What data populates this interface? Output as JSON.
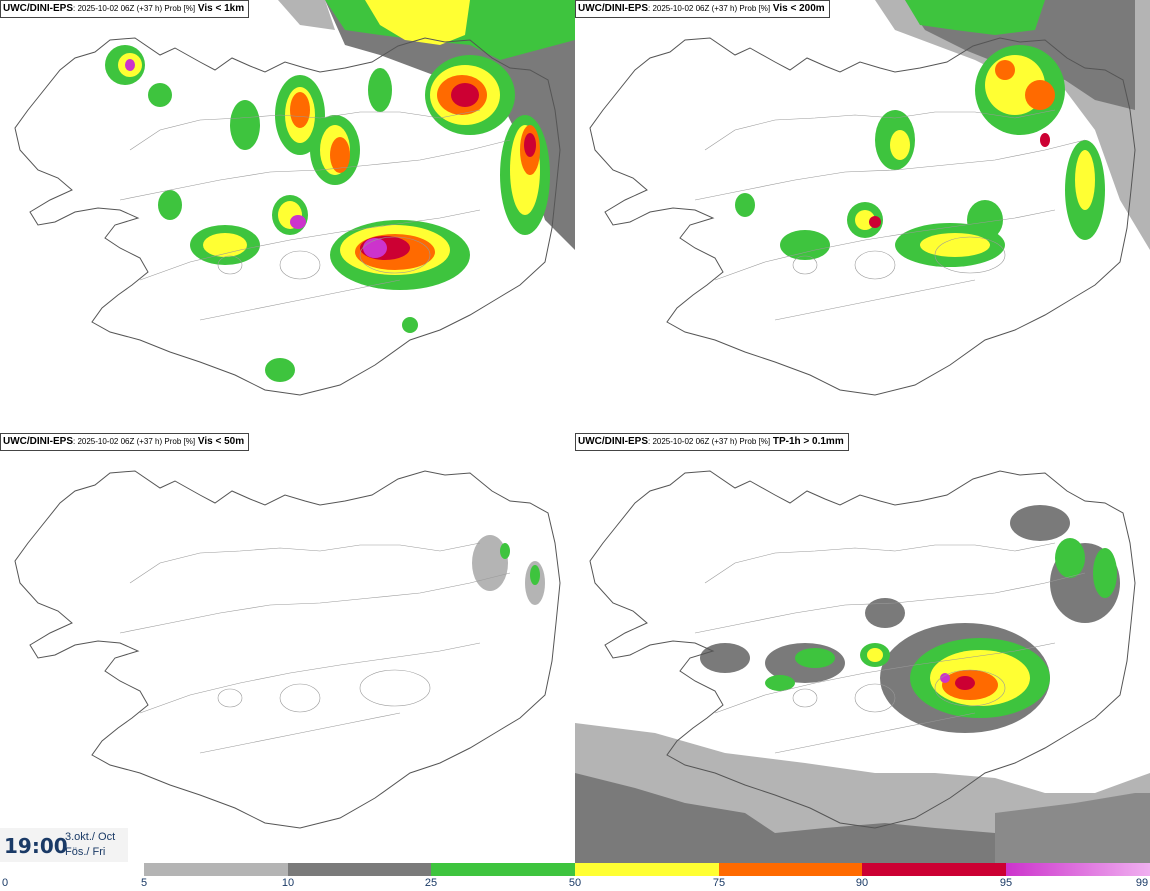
{
  "panels": [
    {
      "source": "UWC/DINI-EPS",
      "meta": ": 2025-10-02 06Z (+37 h) Prob [%]",
      "variable": "Vis < 1km"
    },
    {
      "source": "UWC/DINI-EPS",
      "meta": ": 2025-10-02 06Z (+37 h) Prob [%]",
      "variable": "Vis < 200m"
    },
    {
      "source": "UWC/DINI-EPS",
      "meta": ": 2025-10-02 06Z (+37 h) Prob [%]",
      "variable": "Vis < 50m"
    },
    {
      "source": "UWC/DINI-EPS",
      "meta": ": 2025-10-02 06Z (+37 h) Prob [%]",
      "variable": "TP-1h > 0.1mm"
    }
  ],
  "valid_time": {
    "time": "19:00",
    "date": "3.okt./ Oct",
    "day": "Fös./ Fri"
  },
  "legend": {
    "ticks": [
      "0",
      "5",
      "10",
      "25",
      "50",
      "75",
      "90",
      "95",
      "99"
    ],
    "colors": [
      "#ffffff",
      "#b4b4b4",
      "#7a7a7a",
      "#3ec43e",
      "#ffff33",
      "#ff6a00",
      "#cc0033",
      "#cc33cc"
    ]
  }
}
